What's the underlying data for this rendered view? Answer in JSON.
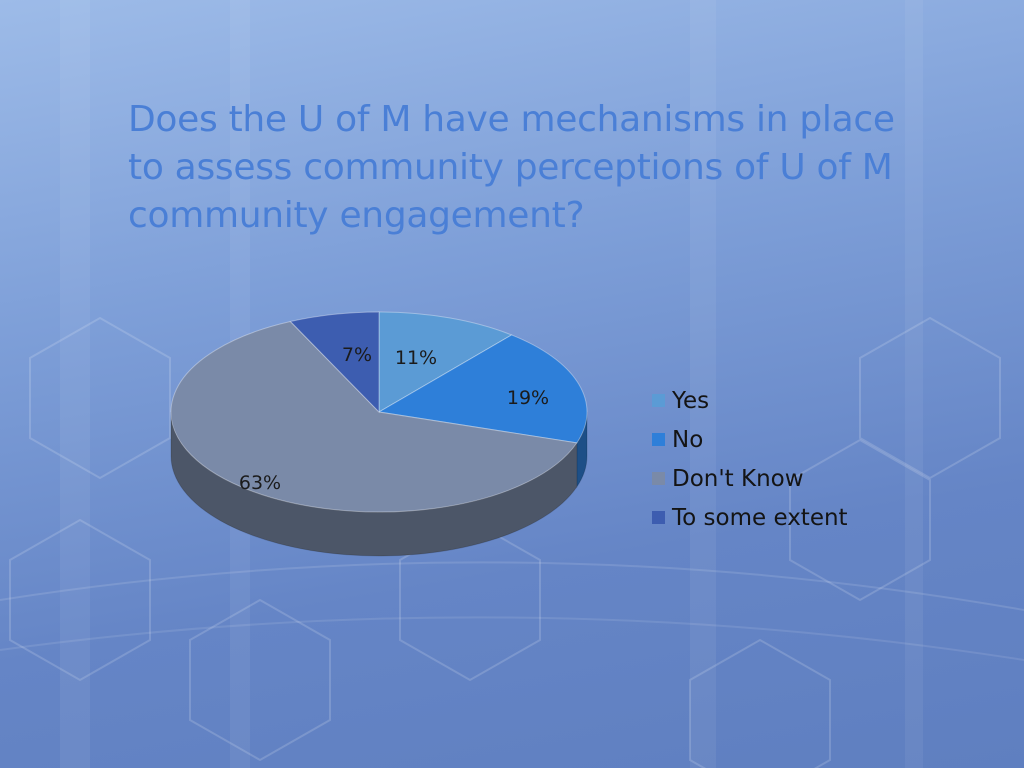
{
  "slide": {
    "title": "Does the U of M have mechanisms in place to assess community perceptions of U of M community engagement?"
  },
  "chart_data": {
    "type": "pie",
    "categories": [
      "Yes",
      "No",
      "Don't Know",
      "To some extent"
    ],
    "values": [
      11,
      19,
      63,
      7
    ],
    "labels": [
      "11%",
      "19%",
      "63%",
      "7%"
    ],
    "colors": [
      "#5b9bd5",
      "#2e7fd9",
      "#7a8aa8",
      "#3d5db0"
    ],
    "legend": "right",
    "3d": true
  }
}
